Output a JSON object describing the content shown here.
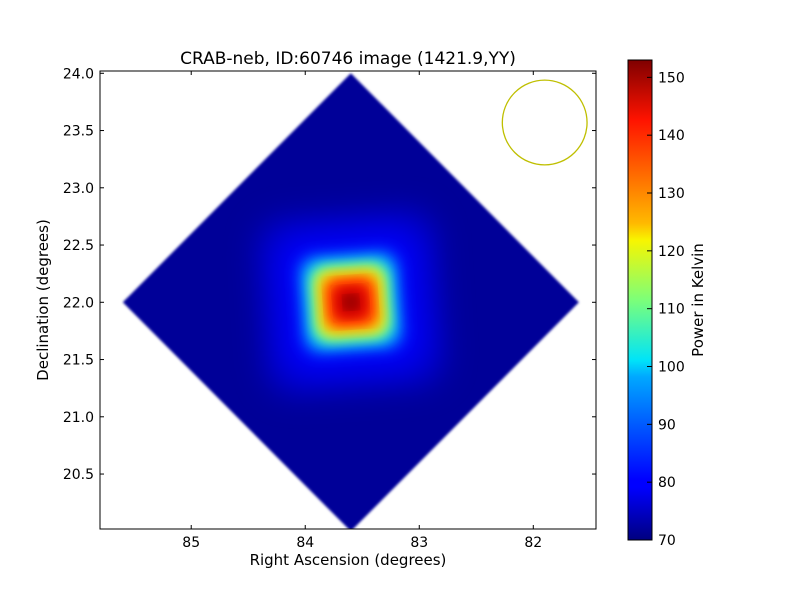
{
  "chart_data": {
    "type": "heatmap",
    "title": "CRAB-neb, ID:60746 image (1421.9,YY)",
    "xlabel": "Right Ascension (degrees)",
    "ylabel": "Declination (degrees)",
    "xlim": [
      85.8,
      81.45
    ],
    "ylim": [
      20.02,
      24.02
    ],
    "x_ticks": [
      85,
      84,
      83,
      82
    ],
    "x_tick_labels": [
      "85",
      "84",
      "83",
      "82"
    ],
    "y_ticks": [
      20.5,
      21.0,
      21.5,
      22.0,
      22.5,
      23.0,
      23.5,
      24.0
    ],
    "y_tick_labels": [
      "20.5",
      "21.0",
      "21.5",
      "22.0",
      "22.5",
      "23.0",
      "23.5",
      "24.0"
    ],
    "colorbar": {
      "label": "Power in Kelvin",
      "range": [
        70,
        153
      ],
      "ticks": [
        70,
        80,
        90,
        100,
        110,
        120,
        130,
        140,
        150
      ],
      "tick_labels": [
        "70",
        "80",
        "90",
        "100",
        "110",
        "120",
        "130",
        "140",
        "150"
      ],
      "colormap": "jet"
    },
    "source": {
      "ra": 83.6,
      "dec": 22.0,
      "peak_kelvin": 153
    },
    "background_kelvin": 72,
    "coverage": {
      "center_ra": 83.6,
      "center_dec": 22.0,
      "half_extent_deg": 2.0,
      "shape": "diamond"
    },
    "beam": {
      "ra": 81.9,
      "dec": 23.57,
      "radius_deg": 0.37,
      "color": "#bfbf00"
    }
  }
}
